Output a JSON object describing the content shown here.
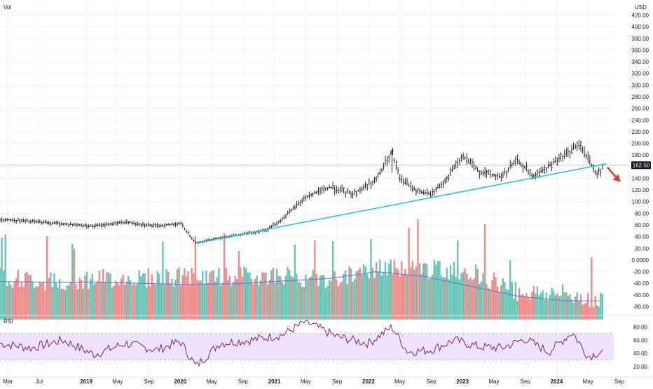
{
  "header": {
    "volume_label": "Vol",
    "currency": "USD"
  },
  "price_axis": {
    "ticks": [
      "420.00",
      "400.00",
      "380.00",
      "360.00",
      "340.00",
      "320.00",
      "300.00",
      "280.00",
      "260.00",
      "240.00",
      "220.00",
      "200.00",
      "180.00",
      "160.00",
      "140.00",
      "120.00",
      "100.00",
      "80.00",
      "60.00",
      "40.00",
      "20.00",
      "0.0000",
      "-20.00",
      "-40.00",
      "-60.00",
      "-80.00"
    ],
    "last_price_label": "162.50"
  },
  "rsi_panel": {
    "label": "RSI",
    "ticks": [
      "80.00",
      "60.00",
      "40.00",
      "20.00"
    ],
    "band_upper": 70,
    "band_lower": 30,
    "ylim": [
      12,
      93
    ]
  },
  "time_axis": {
    "labels": [
      {
        "text": "Mar",
        "bold": false,
        "date": "2018-03"
      },
      {
        "text": "Jul",
        "bold": false,
        "date": "2018-07"
      },
      {
        "text": "2019",
        "bold": true,
        "date": "2019-01"
      },
      {
        "text": "May",
        "bold": false,
        "date": "2019-05"
      },
      {
        "text": "Sep",
        "bold": false,
        "date": "2019-09"
      },
      {
        "text": "2020",
        "bold": true,
        "date": "2020-01"
      },
      {
        "text": "May",
        "bold": false,
        "date": "2020-05"
      },
      {
        "text": "Sep",
        "bold": false,
        "date": "2020-09"
      },
      {
        "text": "2021",
        "bold": true,
        "date": "2021-01"
      },
      {
        "text": "May",
        "bold": false,
        "date": "2021-05"
      },
      {
        "text": "Sep",
        "bold": false,
        "date": "2021-09"
      },
      {
        "text": "2022",
        "bold": true,
        "date": "2022-01"
      },
      {
        "text": "May",
        "bold": false,
        "date": "2022-05"
      },
      {
        "text": "Sep",
        "bold": false,
        "date": "2022-09"
      },
      {
        "text": "2023",
        "bold": true,
        "date": "2023-01"
      },
      {
        "text": "May",
        "bold": false,
        "date": "2023-05"
      },
      {
        "text": "Sep",
        "bold": false,
        "date": "2023-09"
      },
      {
        "text": "2024",
        "bold": true,
        "date": "2024-01"
      },
      {
        "text": "May",
        "bold": false,
        "date": "2024-05"
      },
      {
        "text": "Sep",
        "bold": false,
        "date": "2024-09"
      }
    ]
  },
  "colors": {
    "price_bar": "#131722",
    "trendline": "#22c1cf",
    "arrow": "#e53935",
    "vol_up": "#66c5b5",
    "vol_down": "#f08a88",
    "vol_ma": "#5b74d6",
    "rsi_line": "#7e1f7e",
    "rsi_band": "#efe3fb",
    "grid": "#f0f3fa",
    "crosshair": "#b2b5be"
  },
  "chart_data": [
    {
      "type": "line",
      "subtype": "weekly price bars",
      "title": "",
      "ylabel": "USD",
      "ylim": [
        -90,
        430
      ],
      "x": [
        "2018-02",
        "2018-06",
        "2018-10",
        "2019-02",
        "2019-06",
        "2019-10",
        "2020-01",
        "2020-03",
        "2020-06",
        "2020-09",
        "2020-12",
        "2021-02",
        "2021-05",
        "2021-08",
        "2021-11",
        "2022-02",
        "2022-04",
        "2022-05",
        "2022-07",
        "2022-09",
        "2022-11",
        "2023-01",
        "2023-03",
        "2023-06",
        "2023-08",
        "2023-10",
        "2023-12",
        "2024-02",
        "2024-04",
        "2024-06",
        "2024-07"
      ],
      "y": [
        70,
        66,
        62,
        58,
        65,
        58,
        63,
        29,
        38,
        44,
        52,
        70,
        108,
        125,
        113,
        138,
        185,
        140,
        120,
        112,
        140,
        178,
        153,
        142,
        172,
        143,
        160,
        180,
        198,
        150,
        158
      ],
      "annotations": [
        {
          "type": "trendline",
          "from": [
            "2020-03",
            29
          ],
          "to": [
            "2024-07",
            165
          ]
        },
        {
          "type": "horizontal_line",
          "y": 162.5,
          "label": "162.50"
        },
        {
          "type": "arrow",
          "direction": "down-right",
          "at": "2024-07"
        }
      ]
    },
    {
      "type": "bar",
      "title": "Vol",
      "note": "volume histogram with moving average",
      "x": [
        "2018-02",
        "2018-08",
        "2019-02",
        "2019-08",
        "2020-02",
        "2020-08",
        "2021-02",
        "2021-08",
        "2022-02",
        "2022-08",
        "2023-02",
        "2023-08",
        "2024-02",
        "2024-07"
      ],
      "values": [
        -38,
        -47,
        -42,
        -40,
        -38,
        -38,
        -35,
        -45,
        -25,
        -25,
        -28,
        -63,
        -68,
        -78
      ],
      "ma": [
        -37,
        -38,
        -38,
        -40,
        -42,
        -41,
        -36,
        -32,
        -20,
        -28,
        -45,
        -62,
        -70,
        -70
      ]
    },
    {
      "type": "line",
      "title": "RSI",
      "ylim": [
        12,
        93
      ],
      "x": [
        "2018-02",
        "2018-06",
        "2018-10",
        "2019-02",
        "2019-06",
        "2019-10",
        "2020-01",
        "2020-03",
        "2020-06",
        "2020-10",
        "2021-02",
        "2021-05",
        "2021-09",
        "2022-01",
        "2022-04",
        "2022-06",
        "2022-09",
        "2022-12",
        "2023-03",
        "2023-06",
        "2023-09",
        "2023-12",
        "2024-03",
        "2024-05",
        "2024-07"
      ],
      "values": [
        55,
        48,
        60,
        38,
        55,
        45,
        58,
        20,
        55,
        60,
        68,
        88,
        65,
        55,
        80,
        42,
        45,
        60,
        50,
        48,
        62,
        42,
        72,
        35,
        44
      ],
      "bands": [
        30,
        70
      ]
    }
  ]
}
